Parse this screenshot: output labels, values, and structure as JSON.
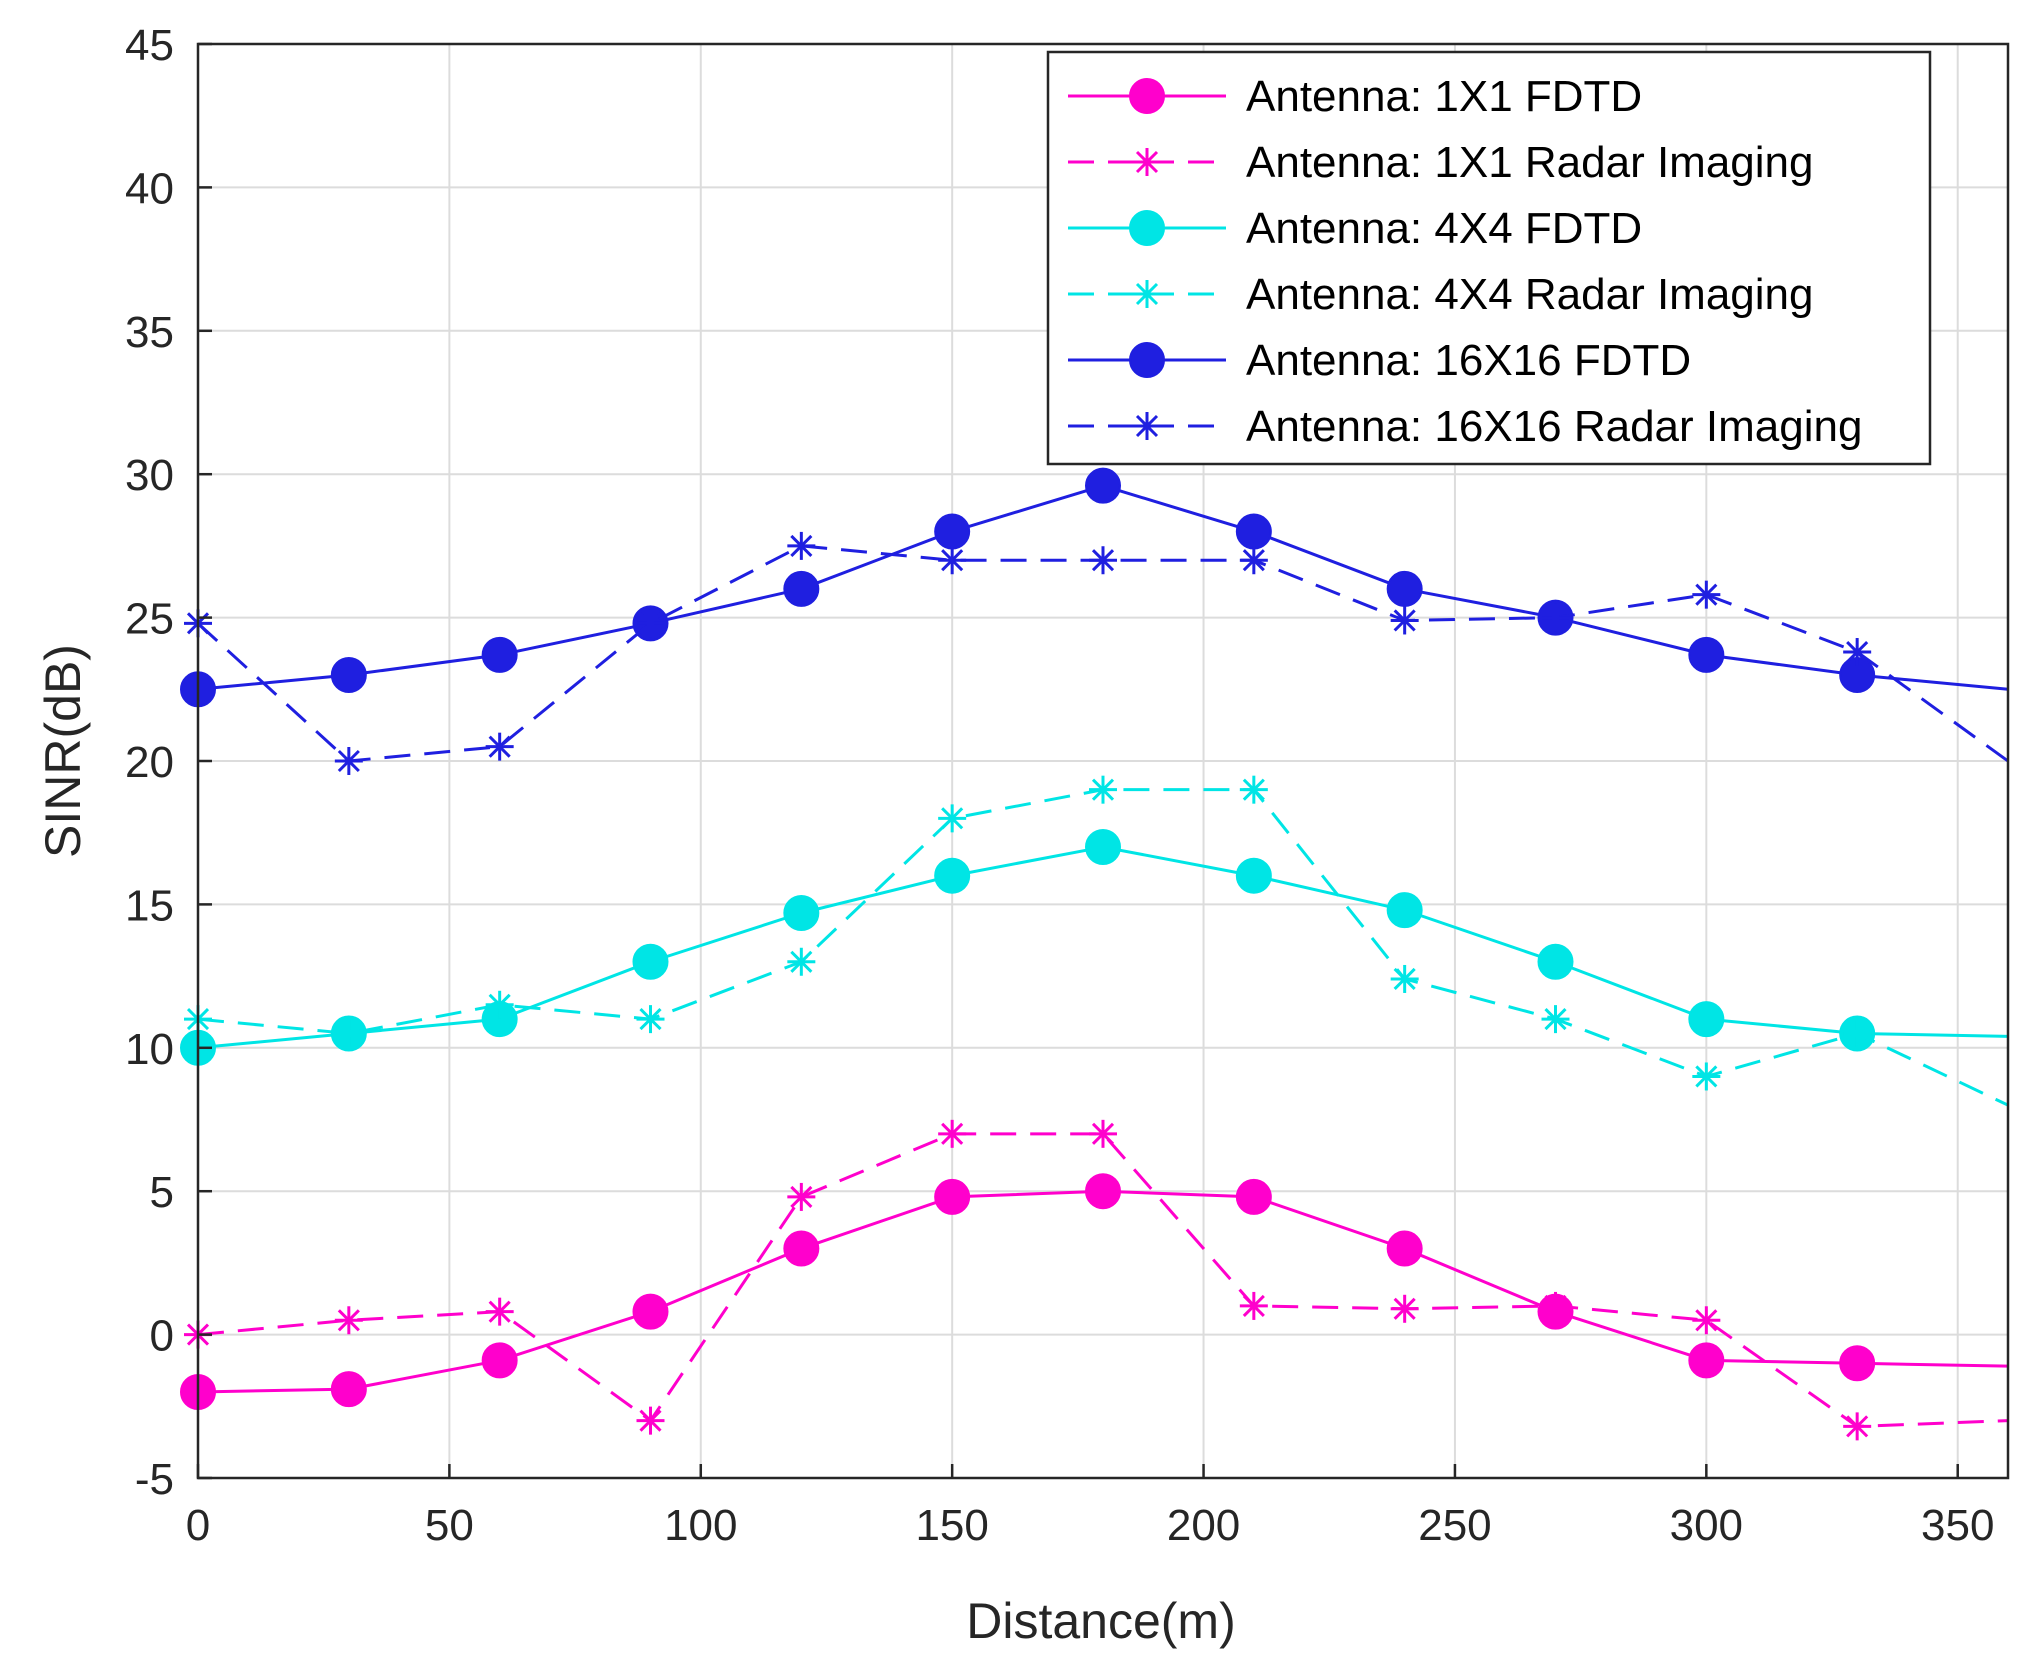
{
  "chart_data": {
    "type": "line",
    "xlabel": "Distance(m)",
    "ylabel": "SINR(dB)",
    "xlim": [
      0,
      360
    ],
    "ylim": [
      -5,
      45
    ],
    "xticks": [
      0,
      50,
      100,
      150,
      200,
      250,
      300,
      350
    ],
    "yticks": [
      -5,
      0,
      5,
      10,
      15,
      20,
      25,
      30,
      35,
      40,
      45
    ],
    "grid": true,
    "legend_position": "top-right",
    "x": [
      0,
      30,
      60,
      90,
      120,
      150,
      180,
      210,
      240,
      270,
      300,
      330,
      360
    ],
    "series": [
      {
        "name": "Antenna: 1X1 FDTD",
        "color": "#ff00cc",
        "style": "solid",
        "marker": "circle",
        "values": [
          -2,
          -1.9,
          -0.9,
          0.8,
          3,
          4.8,
          5,
          4.8,
          3,
          0.8,
          -0.9,
          -1,
          -1.1
        ]
      },
      {
        "name": "Antenna: 1X1 Radar Imaging",
        "color": "#ff00cc",
        "style": "dashed",
        "marker": "asterisk",
        "values": [
          0,
          0.5,
          0.8,
          -3,
          4.8,
          7,
          7,
          1,
          0.9,
          1,
          0.5,
          -3.2,
          -3
        ]
      },
      {
        "name": "Antenna: 4X4 FDTD",
        "color": "#00e5e5",
        "style": "solid",
        "marker": "circle",
        "values": [
          10,
          10.5,
          11,
          13,
          14.7,
          16,
          17,
          16,
          14.8,
          13,
          11,
          10.5,
          10.4
        ]
      },
      {
        "name": "Antenna: 4X4 Radar Imaging",
        "color": "#00e5e5",
        "style": "dashed",
        "marker": "asterisk",
        "values": [
          11,
          10.5,
          11.5,
          11,
          13,
          18,
          19,
          19,
          12.4,
          11,
          9,
          10.5,
          8
        ]
      },
      {
        "name": "Antenna: 16X16 FDTD",
        "color": "#1f1fe0",
        "style": "solid",
        "marker": "circle",
        "values": [
          22.5,
          23,
          23.7,
          24.8,
          26,
          28,
          29.6,
          28,
          26,
          25,
          23.7,
          23,
          22.5
        ]
      },
      {
        "name": "Antenna: 16X16 Radar Imaging",
        "color": "#1f1fe0",
        "style": "dashed",
        "marker": "asterisk",
        "values": [
          24.8,
          20,
          20.5,
          24.8,
          27.5,
          27,
          27,
          27,
          24.9,
          25,
          25.8,
          23.8,
          20
        ]
      }
    ]
  }
}
